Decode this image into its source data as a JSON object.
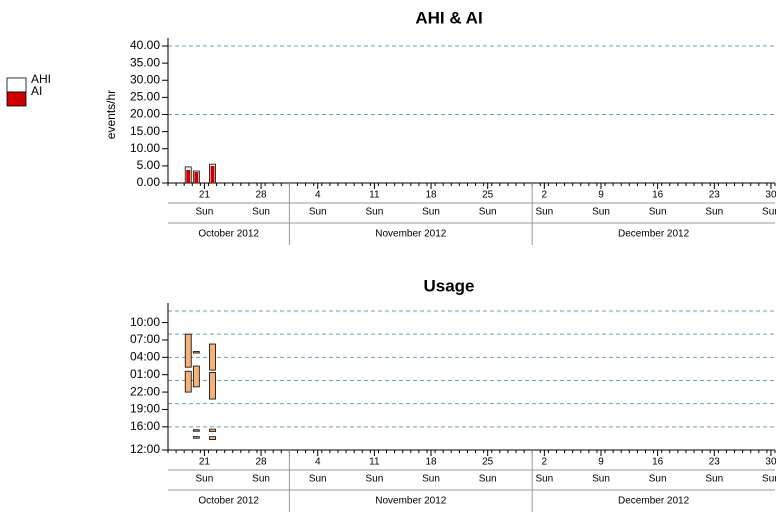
{
  "chart_data": [
    {
      "type": "bar",
      "title": "AHI & AI",
      "y_label": "events/hr",
      "x": [
        "2012-10-19",
        "2012-10-20",
        "2012-10-22"
      ],
      "series": [
        {
          "name": "AHI",
          "color": "#ffffff",
          "values": [
            4.7,
            3.5,
            5.5
          ]
        },
        {
          "name": "AI",
          "color": "#cc0000",
          "values": [
            3.8,
            3.2,
            5.0
          ]
        }
      ],
      "ylim": [
        0,
        40
      ],
      "yticks": [
        {
          "value": 0,
          "label": "0.00"
        },
        {
          "value": 5,
          "label": "5.00"
        },
        {
          "value": 10,
          "label": "10.00"
        },
        {
          "value": 15,
          "label": "15.00"
        },
        {
          "value": 20,
          "label": "20.00"
        },
        {
          "value": 25,
          "label": "25.00"
        },
        {
          "value": 30,
          "label": "30.00"
        },
        {
          "value": 35,
          "label": "35.00"
        },
        {
          "value": 40,
          "label": "40.00"
        }
      ],
      "ygrid": [
        20,
        40
      ],
      "xlim": [
        "2012-10-17",
        "2012-12-31"
      ],
      "xticks": [
        {
          "value": "2012-10-21",
          "label": "21"
        },
        {
          "value": "2012-10-28",
          "label": "28"
        },
        {
          "value": "2012-11-04",
          "label": "4"
        },
        {
          "value": "2012-11-11",
          "label": "11"
        },
        {
          "value": "2012-11-18",
          "label": "18"
        },
        {
          "value": "2012-11-25",
          "label": "25"
        },
        {
          "value": "2012-12-02",
          "label": "2"
        },
        {
          "value": "2012-12-09",
          "label": "9"
        },
        {
          "value": "2012-12-16",
          "label": "16"
        },
        {
          "value": "2012-12-23",
          "label": "23"
        },
        {
          "value": "2012-12-30",
          "label": "30"
        }
      ],
      "weekday_labels": [
        "Sun",
        "Sun",
        "Sun",
        "Sun",
        "Sun",
        "Sun",
        "Sun",
        "Sun",
        "Sun",
        "Sun",
        "Sun"
      ],
      "month_labels": [
        "October 2012",
        "November 2012",
        "December 2012"
      ],
      "legend": "left"
    },
    {
      "type": "range",
      "title": "Usage",
      "color": "#f2b27a",
      "x": [
        "2012-10-19",
        "2012-10-19",
        "2012-10-20",
        "2012-10-20",
        "2012-10-20",
        "2012-10-20",
        "2012-10-22",
        "2012-10-22",
        "2012-10-22",
        "2012-10-22"
      ],
      "start": [
        10.0,
        14.3,
        10.9,
        16.8,
        3.3,
        2.1,
        8.8,
        13.8,
        3.2,
        1.8
      ],
      "end": [
        13.6,
        20.0,
        14.5,
        17.0,
        3.5,
        2.3,
        13.4,
        18.3,
        3.6,
        2.3
      ],
      "ylim": [
        0,
        24
      ],
      "yticks": [
        {
          "value": 0,
          "label": "12:00"
        },
        {
          "value": 4,
          "label": "16:00"
        },
        {
          "value": 7,
          "label": "19:00"
        },
        {
          "value": 10,
          "label": "22:00"
        },
        {
          "value": 13,
          "label": "01:00"
        },
        {
          "value": 16,
          "label": "04:00"
        },
        {
          "value": 19,
          "label": "07:00"
        },
        {
          "value": 22,
          "label": "10:00"
        }
      ],
      "ygrid": [
        4,
        8,
        12,
        16,
        20,
        24
      ],
      "xlim": [
        "2012-10-17",
        "2012-12-31"
      ],
      "xticks": [
        {
          "value": "2012-10-21",
          "label": "21"
        },
        {
          "value": "2012-10-28",
          "label": "28"
        },
        {
          "value": "2012-11-04",
          "label": "4"
        },
        {
          "value": "2012-11-11",
          "label": "11"
        },
        {
          "value": "2012-11-18",
          "label": "18"
        },
        {
          "value": "2012-11-25",
          "label": "25"
        },
        {
          "value": "2012-12-02",
          "label": "2"
        },
        {
          "value": "2012-12-09",
          "label": "9"
        },
        {
          "value": "2012-12-16",
          "label": "16"
        },
        {
          "value": "2012-12-23",
          "label": "23"
        },
        {
          "value": "2012-12-30",
          "label": "30"
        }
      ],
      "weekday_labels": [
        "Sun",
        "Sun",
        "Sun",
        "Sun",
        "Sun",
        "Sun",
        "Sun",
        "Sun",
        "Sun",
        "Sun",
        "Sun"
      ],
      "month_labels": [
        "October 2012",
        "November 2012",
        "December 2012"
      ]
    }
  ]
}
